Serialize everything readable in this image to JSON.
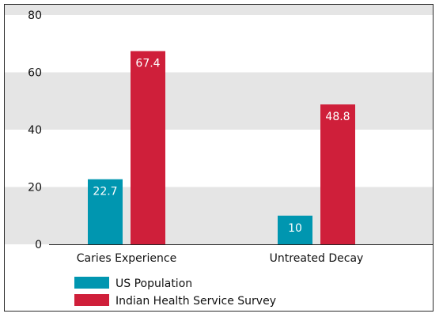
{
  "chart_data": {
    "type": "bar",
    "categories": [
      "Caries Experience",
      "Untreated Decay"
    ],
    "series": [
      {
        "name": "US Population",
        "values": [
          22.7,
          10
        ],
        "color": "#0096b0",
        "value_labels": [
          "22.7",
          "10"
        ]
      },
      {
        "name": "Indian Health Service Survey",
        "values": [
          67.4,
          48.8
        ],
        "color": "#cf1f3a",
        "value_labels": [
          "67.4",
          "48.8"
        ]
      }
    ],
    "ylim": [
      0,
      80
    ],
    "yticks": [
      0,
      20,
      40,
      60,
      80
    ],
    "ytick_labels": [
      "0",
      "20",
      "40",
      "60",
      "80"
    ],
    "band_color": "#e5e5e5",
    "grid": "alternating horizontal bands",
    "legend_position": "bottom-left",
    "title": "",
    "xlabel": "",
    "ylabel": ""
  }
}
